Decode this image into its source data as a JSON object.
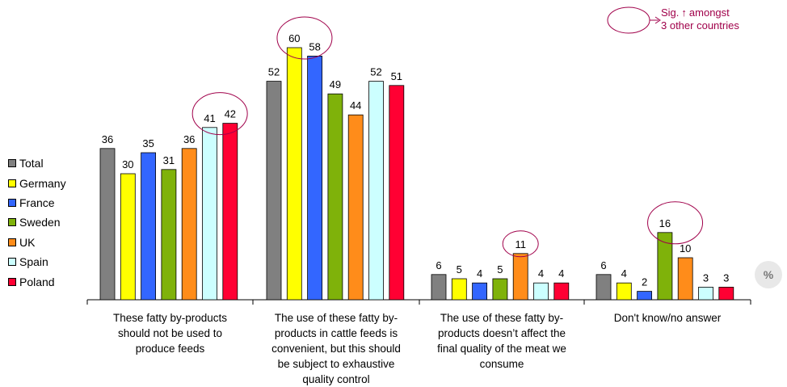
{
  "chart_data": {
    "type": "bar",
    "categories": [
      "These fatty by-products should not be used to produce feeds",
      "The use of these fatty by-products in cattle feeds is convenient, but this should be subject to exhaustive quality control",
      "The use of these fatty by-products doesn't affect the final quality of the meat we consume",
      "Don't know/no answer"
    ],
    "category_lines": [
      [
        "These fatty by-products",
        "should not be used to",
        "produce feeds"
      ],
      [
        "The use of these fatty by-",
        "products in cattle feeds is",
        "convenient, but this should",
        "be subject to exhaustive",
        "quality control"
      ],
      [
        "The use of these fatty by-",
        "products doesn’t affect the",
        "final quality of the meat we",
        "consume"
      ],
      [
        "Don't know/no answer"
      ]
    ],
    "series": [
      {
        "name": "Total",
        "color": "#808080",
        "values": [
          36,
          52,
          6,
          6
        ]
      },
      {
        "name": "Germany",
        "color": "#ffff00",
        "values": [
          30,
          60,
          5,
          4
        ]
      },
      {
        "name": "France",
        "color": "#3366ff",
        "values": [
          35,
          58,
          4,
          2
        ]
      },
      {
        "name": "Sweden",
        "color": "#7fb20a",
        "values": [
          31,
          49,
          5,
          16
        ]
      },
      {
        "name": "UK",
        "color": "#ff8c1a",
        "values": [
          36,
          44,
          11,
          10
        ]
      },
      {
        "name": "Spain",
        "color": "#ccffff",
        "values": [
          41,
          52,
          4,
          3
        ]
      },
      {
        "name": "Poland",
        "color": "#ff0033",
        "values": [
          42,
          51,
          4,
          3
        ]
      }
    ],
    "highlights": [
      {
        "category": 0,
        "series": [
          5,
          6
        ]
      },
      {
        "category": 1,
        "series": [
          1,
          2
        ]
      },
      {
        "category": 2,
        "series": [
          4
        ]
      },
      {
        "category": 3,
        "series": [
          3,
          4
        ]
      }
    ],
    "ylim": [
      0,
      60
    ],
    "legend_position": "left",
    "grid": false
  },
  "annotation": {
    "sig_line1": "Sig.",
    "sig_arrow": "↑",
    "sig_line1_end": "amongst",
    "sig_line2": "3 other countries",
    "color": "#a0004a"
  },
  "unit_badge": "%"
}
